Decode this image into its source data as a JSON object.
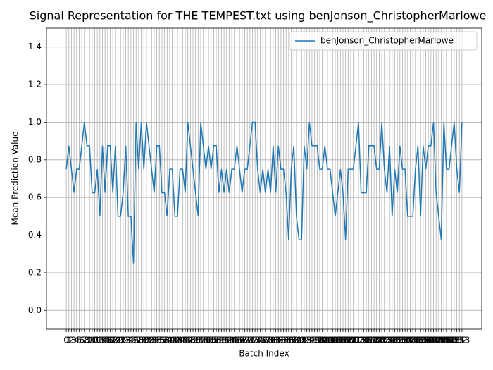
{
  "chart_data": {
    "type": "line",
    "title": "Signal Representation for THE TEMPEST.txt using benJonson_ChristopherMarlowe",
    "xlabel": "Batch Index",
    "ylabel": "Mean Prediction Value",
    "x": [
      0,
      1,
      2,
      3,
      4,
      5,
      6,
      7,
      8,
      9,
      10,
      11,
      12,
      13,
      14,
      15,
      16,
      17,
      18,
      19,
      20,
      21,
      22,
      23,
      24,
      25,
      26,
      27,
      28,
      29,
      30,
      31,
      32,
      33,
      34,
      35,
      36,
      37,
      38,
      39,
      40,
      41,
      42,
      43,
      44,
      45,
      46,
      47,
      48,
      49,
      50,
      51,
      52,
      53,
      54,
      55,
      56,
      57,
      58,
      59,
      60,
      61,
      62,
      63,
      64,
      65,
      66,
      67,
      68,
      69,
      70,
      71,
      72,
      73,
      74,
      75,
      76,
      77,
      78,
      79,
      80,
      81,
      82,
      83,
      84,
      85,
      86,
      87,
      88,
      89,
      90,
      91,
      92,
      93,
      94,
      95,
      96,
      97,
      98,
      99,
      100,
      101,
      102,
      103,
      104,
      105,
      106,
      107,
      108,
      109,
      110,
      111,
      112,
      113,
      114,
      115,
      116,
      117,
      118,
      119,
      120,
      121,
      122,
      123,
      124,
      125,
      126,
      127,
      128,
      129,
      130,
      131,
      132,
      133,
      134,
      135,
      136,
      137,
      138,
      139,
      140,
      141,
      142,
      143,
      144,
      145,
      146,
      147,
      148,
      149,
      150,
      151,
      152,
      153
    ],
    "series": [
      {
        "name": "benJonson_ChristopherMarlowe",
        "color": "#1f77b4",
        "values": [
          0.75,
          0.875,
          0.75,
          0.625,
          0.75,
          0.75,
          0.875,
          1.0,
          0.875,
          0.875,
          0.625,
          0.625,
          0.75,
          0.5,
          0.875,
          0.625,
          0.875,
          0.875,
          0.625,
          0.875,
          0.5,
          0.5,
          0.625,
          0.875,
          0.5,
          0.5,
          0.25,
          1.0,
          0.75,
          1.0,
          0.75,
          1.0,
          0.875,
          0.75,
          0.625,
          0.875,
          0.875,
          0.625,
          0.625,
          0.5,
          0.75,
          0.75,
          0.5,
          0.5,
          0.75,
          0.75,
          0.625,
          1.0,
          0.875,
          0.75,
          0.625,
          0.5,
          1.0,
          0.875,
          0.75,
          0.875,
          0.75,
          0.875,
          0.875,
          0.625,
          0.75,
          0.625,
          0.75,
          0.625,
          0.75,
          0.75,
          0.875,
          0.75,
          0.625,
          0.75,
          0.75,
          0.875,
          1.0,
          1.0,
          0.75,
          0.625,
          0.75,
          0.625,
          0.75,
          0.625,
          0.875,
          0.625,
          0.875,
          0.75,
          0.75,
          0.625,
          0.375,
          0.75,
          0.875,
          0.5,
          0.375,
          0.375,
          0.875,
          0.75,
          1.0,
          0.875,
          0.875,
          0.875,
          0.75,
          0.75,
          0.875,
          0.75,
          0.75,
          0.625,
          0.5,
          0.625,
          0.75,
          0.625,
          0.375,
          0.75,
          0.75,
          0.75,
          0.875,
          1.0,
          0.625,
          0.625,
          0.625,
          0.875,
          0.875,
          0.875,
          0.75,
          0.75,
          1.0,
          0.75,
          0.625,
          0.875,
          0.5,
          0.75,
          0.625,
          0.875,
          0.75,
          0.75,
          0.5,
          0.5,
          0.5,
          0.75,
          0.875,
          0.5,
          0.875,
          0.75,
          0.875,
          0.875,
          1.0,
          0.625,
          0.5,
          0.375,
          1.0,
          0.75,
          0.75,
          0.875,
          1.0,
          0.75,
          0.625,
          1.0
        ]
      }
    ],
    "xlim": [
      -7.65,
      160.65
    ],
    "ylim": [
      -0.1,
      1.5
    ],
    "xticks": [
      0,
      1,
      2,
      3,
      4,
      5,
      6,
      7,
      8,
      9,
      10,
      11,
      12,
      13,
      14,
      15,
      16,
      17,
      18,
      19,
      20,
      21,
      22,
      23,
      24,
      25,
      26,
      27,
      28,
      29,
      30,
      31,
      32,
      33,
      34,
      35,
      36,
      37,
      38,
      39,
      40,
      41,
      42,
      43,
      44,
      45,
      46,
      47,
      48,
      49,
      50,
      51,
      52,
      53,
      54,
      55,
      56,
      57,
      58,
      59,
      60,
      61,
      62,
      63,
      64,
      65,
      66,
      67,
      68,
      69,
      70,
      71,
      72,
      73,
      74,
      75,
      76,
      77,
      78,
      79,
      80,
      81,
      82,
      83,
      84,
      85,
      86,
      87,
      88,
      89,
      90,
      91,
      92,
      93,
      94,
      95,
      96,
      97,
      98,
      99,
      100,
      101,
      102,
      103,
      104,
      105,
      106,
      107,
      108,
      109,
      110,
      111,
      112,
      113,
      114,
      115,
      116,
      117,
      118,
      119,
      120,
      121,
      122,
      123,
      124,
      125,
      126,
      127,
      128,
      129,
      130,
      131,
      132,
      133,
      134,
      135,
      136,
      137,
      138,
      139,
      140,
      141,
      142,
      143,
      144,
      145,
      146,
      147,
      148,
      149,
      150,
      151,
      152,
      153
    ],
    "yticks": [
      {
        "value": 0,
        "label": "0.0"
      },
      {
        "value": 0.2,
        "label": "0.2"
      },
      {
        "value": 0.4,
        "label": "0.4"
      },
      {
        "value": 0.6,
        "label": "0.6"
      },
      {
        "value": 0.8,
        "label": "0.8"
      },
      {
        "value": 1.0,
        "label": "1.0"
      },
      {
        "value": 1.2,
        "label": "1.2"
      },
      {
        "value": 1.4,
        "label": "1.4"
      }
    ],
    "grid": true,
    "legend": "upper right"
  }
}
